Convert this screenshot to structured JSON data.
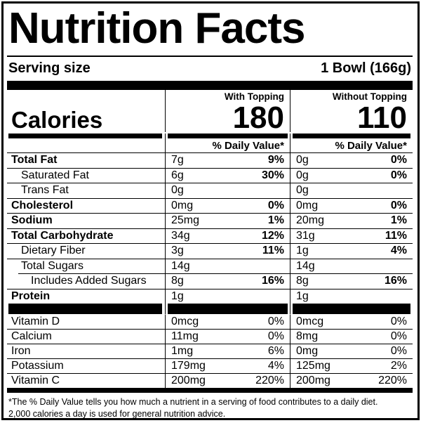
{
  "title": "Nutrition Facts",
  "serving_size": {
    "label": "Serving size",
    "value": "1 Bowl (166g)"
  },
  "column_headers": {
    "with": "With Topping",
    "without": "Without Topping"
  },
  "calories": {
    "label": "Calories",
    "with_topping": "180",
    "without_topping": "110"
  },
  "daily_value_header": "% Daily Value*",
  "nutrients": [
    {
      "name": "Total Fat",
      "bold": true,
      "indent": 0,
      "sep_indent": false,
      "with": {
        "amount": "7g",
        "dv": "9%"
      },
      "without": {
        "amount": "0g",
        "dv": "0%"
      }
    },
    {
      "name": "Saturated Fat",
      "bold": false,
      "indent": 1,
      "sep_indent": false,
      "with": {
        "amount": "6g",
        "dv": "30%"
      },
      "without": {
        "amount": "0g",
        "dv": "0%"
      }
    },
    {
      "name": "Trans Fat",
      "bold": false,
      "indent": 1,
      "sep_indent": false,
      "with": {
        "amount": "0g",
        "dv": ""
      },
      "without": {
        "amount": "0g",
        "dv": ""
      }
    },
    {
      "name": "Cholesterol",
      "bold": true,
      "indent": 0,
      "sep_indent": false,
      "with": {
        "amount": "0mg",
        "dv": "0%"
      },
      "without": {
        "amount": "0mg",
        "dv": "0%"
      }
    },
    {
      "name": "Sodium",
      "bold": true,
      "indent": 0,
      "sep_indent": false,
      "with": {
        "amount": "25mg",
        "dv": "1%"
      },
      "without": {
        "amount": "20mg",
        "dv": "1%"
      }
    },
    {
      "name": "Total Carbohydrate",
      "bold": true,
      "indent": 0,
      "sep_indent": false,
      "with": {
        "amount": "34g",
        "dv": "12%"
      },
      "without": {
        "amount": "31g",
        "dv": "11%"
      }
    },
    {
      "name": "Dietary Fiber",
      "bold": false,
      "indent": 1,
      "sep_indent": false,
      "with": {
        "amount": "3g",
        "dv": "11%"
      },
      "without": {
        "amount": "1g",
        "dv": "4%"
      }
    },
    {
      "name": "Total Sugars",
      "bold": false,
      "indent": 1,
      "sep_indent": false,
      "with": {
        "amount": "14g",
        "dv": ""
      },
      "without": {
        "amount": "14g",
        "dv": ""
      }
    },
    {
      "name": "Includes Added Sugars",
      "bold": false,
      "indent": 2,
      "sep_indent": true,
      "with": {
        "amount": "8g",
        "dv": "16%"
      },
      "without": {
        "amount": "8g",
        "dv": "16%"
      }
    },
    {
      "name": "Protein",
      "bold": true,
      "indent": 0,
      "sep_indent": false,
      "with": {
        "amount": "1g",
        "dv": ""
      },
      "without": {
        "amount": "1g",
        "dv": ""
      }
    }
  ],
  "vitamins": [
    {
      "name": "Vitamin D",
      "bold": false,
      "indent": 0,
      "sep_indent": false,
      "with": {
        "amount": "0mcg",
        "dv": "0%"
      },
      "without": {
        "amount": "0mcg",
        "dv": "0%"
      }
    },
    {
      "name": "Calcium",
      "bold": false,
      "indent": 0,
      "sep_indent": false,
      "with": {
        "amount": "11mg",
        "dv": "0%"
      },
      "without": {
        "amount": "8mg",
        "dv": "0%"
      }
    },
    {
      "name": "Iron",
      "bold": false,
      "indent": 0,
      "sep_indent": false,
      "with": {
        "amount": "1mg",
        "dv": "6%"
      },
      "without": {
        "amount": "0mg",
        "dv": "0%"
      }
    },
    {
      "name": "Potassium",
      "bold": false,
      "indent": 0,
      "sep_indent": false,
      "with": {
        "amount": "179mg",
        "dv": "4%"
      },
      "without": {
        "amount": "125mg",
        "dv": "2%"
      }
    },
    {
      "name": "Vitamin C",
      "bold": false,
      "indent": 0,
      "sep_indent": false,
      "with": {
        "amount": "200mg",
        "dv": "220%"
      },
      "without": {
        "amount": "200mg",
        "dv": "220%"
      }
    }
  ],
  "footnote": {
    "line1": "*The % Daily Value tells you how much a nutrient in a serving of food contributes to a daily diet.",
    "line2": "2,000 calories a day is used for general nutrition advice."
  }
}
